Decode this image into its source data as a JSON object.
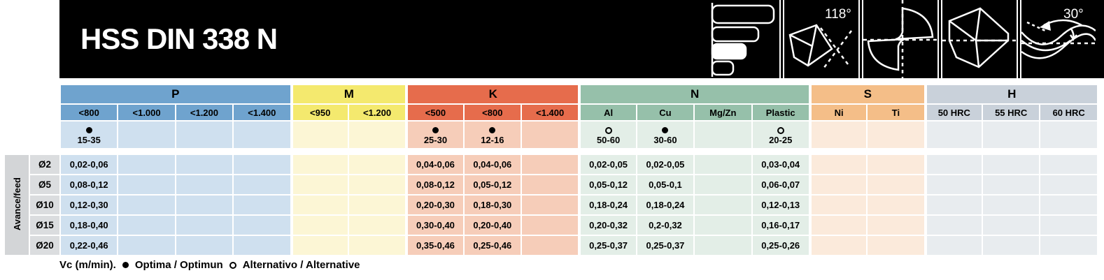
{
  "banner": {
    "title": "HSS DIN 338 N",
    "background": "#000000",
    "icons": [
      {
        "name": "size-range-bars-icon",
        "label": ""
      },
      {
        "name": "point-angle-icon",
        "label": "118°"
      },
      {
        "name": "flute-cross-section-icon",
        "label": ""
      },
      {
        "name": "drill-point-profile-icon",
        "label": ""
      },
      {
        "name": "helix-angle-icon",
        "label": "30°"
      }
    ]
  },
  "table": {
    "row_axis_label": "Avance/feed",
    "groups": [
      {
        "id": "P",
        "label": "P",
        "color": "#6fa3ce",
        "tint": "#cfe0ef",
        "columns": [
          "<800",
          "<1.000",
          "<1.200",
          "<1.400"
        ]
      },
      {
        "id": "M",
        "label": "M",
        "color": "#f4e96e",
        "tint": "#fcf6d5",
        "columns": [
          "<950",
          "<1.200"
        ]
      },
      {
        "id": "K",
        "label": "K",
        "color": "#e66c4c",
        "tint": "#f6cdb9",
        "columns": [
          "<500",
          "<800",
          "<1.400"
        ]
      },
      {
        "id": "N",
        "label": "N",
        "color": "#96c0aa",
        "tint": "#e3eee7",
        "columns": [
          "Al",
          "Cu",
          "Mg/Zn",
          "Plastic"
        ]
      },
      {
        "id": "S",
        "label": "S",
        "color": "#f4be88",
        "tint": "#fbeadb",
        "columns": [
          "Ni",
          "Ti"
        ]
      },
      {
        "id": "H",
        "label": "H",
        "color": "#c9d1da",
        "tint": "#e8ecef",
        "columns": [
          "50 HRC",
          "55 HRC",
          "60 HRC"
        ]
      }
    ],
    "vc_row": [
      {
        "marker": "optima",
        "value": "15-35"
      },
      null,
      null,
      null,
      null,
      null,
      {
        "marker": "optima",
        "value": "25-30"
      },
      {
        "marker": "optima",
        "value": "12-16"
      },
      null,
      {
        "marker": "alternative",
        "value": "50-60"
      },
      {
        "marker": "optima",
        "value": "30-60"
      },
      null,
      {
        "marker": "alternative",
        "value": "20-25"
      },
      null,
      null,
      null,
      null,
      null
    ],
    "rows": [
      {
        "diameter": "Ø2",
        "values": [
          "0,02-0,06",
          "",
          "",
          "",
          "",
          "",
          "0,04-0,06",
          "0,04-0,06",
          "",
          "0,02-0,05",
          "0,02-0,05",
          "",
          "0,03-0,04",
          "",
          "",
          "",
          "",
          ""
        ]
      },
      {
        "diameter": "Ø5",
        "values": [
          "0,08-0,12",
          "",
          "",
          "",
          "",
          "",
          "0,08-0,12",
          "0,05-0,12",
          "",
          "0,05-0,12",
          "0,05-0,1",
          "",
          "0,06-0,07",
          "",
          "",
          "",
          "",
          ""
        ]
      },
      {
        "diameter": "Ø10",
        "values": [
          "0,12-0,30",
          "",
          "",
          "",
          "",
          "",
          "0,20-0,30",
          "0,18-0,30",
          "",
          "0,18-0,24",
          "0,18-0,24",
          "",
          "0,12-0,13",
          "",
          "",
          "",
          "",
          ""
        ]
      },
      {
        "diameter": "Ø15",
        "values": [
          "0,18-0,40",
          "",
          "",
          "",
          "",
          "",
          "0,30-0,40",
          "0,20-0,40",
          "",
          "0,20-0,32",
          "0,2-0,32",
          "",
          "0,16-0,17",
          "",
          "",
          "",
          "",
          ""
        ]
      },
      {
        "diameter": "Ø20",
        "values": [
          "0,22-0,46",
          "",
          "",
          "",
          "",
          "",
          "0,35-0,46",
          "0,25-0,46",
          "",
          "0,25-0,37",
          "0,25-0,37",
          "",
          "0,25-0,26",
          "",
          "",
          "",
          "",
          ""
        ]
      }
    ],
    "label_colors": {
      "axis_box": "#d3d5d7",
      "diameter_box": "#dbdddf"
    }
  },
  "legend": {
    "prefix": "Vc (m/min).",
    "optima_symbol": "●",
    "optima_label": "Optima / Optimun",
    "alternative_symbol": "O",
    "alternative_label": "Alternativo / Alternative"
  }
}
